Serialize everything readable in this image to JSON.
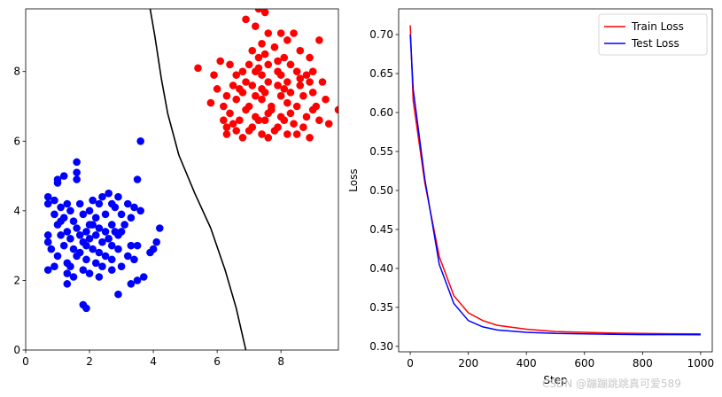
{
  "chart_data": [
    {
      "type": "scatter",
      "title": "",
      "xlabel": "",
      "ylabel": "",
      "xlim": [
        0,
        9.8
      ],
      "ylim": [
        0,
        9.8
      ],
      "xticks": [
        "0",
        "2",
        "4",
        "6",
        "8"
      ],
      "yticks": [
        "0",
        "2",
        "4",
        "6",
        "8"
      ],
      "grid": false,
      "series": [
        {
          "color": "#ff0000",
          "points": [
            [
              6.9,
              9.5
            ],
            [
              7.3,
              9.8
            ],
            [
              7.5,
              9.7
            ],
            [
              7.2,
              9.3
            ],
            [
              7.6,
              9.1
            ],
            [
              8.0,
              9.1
            ],
            [
              8.4,
              9.1
            ],
            [
              8.2,
              8.9
            ],
            [
              7.4,
              8.8
            ],
            [
              7.8,
              8.7
            ],
            [
              9.2,
              8.9
            ],
            [
              7.1,
              8.6
            ],
            [
              7.5,
              8.5
            ],
            [
              8.6,
              8.6
            ],
            [
              7.3,
              8.4
            ],
            [
              8.1,
              8.4
            ],
            [
              8.9,
              8.4
            ],
            [
              6.4,
              8.2
            ],
            [
              7.0,
              8.2
            ],
            [
              7.6,
              8.2
            ],
            [
              8.3,
              8.2
            ],
            [
              6.1,
              8.3
            ],
            [
              5.4,
              8.1
            ],
            [
              7.2,
              8.0
            ],
            [
              7.9,
              8.0
            ],
            [
              8.5,
              8.0
            ],
            [
              9.0,
              8.0
            ],
            [
              5.9,
              7.9
            ],
            [
              6.6,
              7.9
            ],
            [
              7.4,
              7.9
            ],
            [
              8.8,
              7.9
            ],
            [
              6.9,
              7.7
            ],
            [
              7.6,
              7.7
            ],
            [
              8.2,
              7.7
            ],
            [
              9.3,
              7.7
            ],
            [
              6.5,
              7.6
            ],
            [
              7.1,
              7.6
            ],
            [
              7.9,
              7.6
            ],
            [
              8.6,
              7.6
            ],
            [
              6.0,
              7.5
            ],
            [
              6.8,
              7.4
            ],
            [
              7.5,
              7.4
            ],
            [
              8.3,
              7.4
            ],
            [
              9.0,
              7.4
            ],
            [
              6.3,
              7.3
            ],
            [
              7.2,
              7.3
            ],
            [
              8.0,
              7.3
            ],
            [
              8.7,
              7.3
            ],
            [
              9.4,
              7.2
            ],
            [
              6.6,
              7.2
            ],
            [
              7.4,
              7.2
            ],
            [
              8.2,
              7.1
            ],
            [
              5.8,
              7.1
            ],
            [
              6.2,
              7.0
            ],
            [
              7.0,
              7.0
            ],
            [
              7.7,
              7.0
            ],
            [
              8.5,
              7.0
            ],
            [
              9.1,
              7.0
            ],
            [
              6.9,
              6.9
            ],
            [
              7.6,
              6.8
            ],
            [
              8.3,
              6.8
            ],
            [
              9.8,
              6.9
            ],
            [
              6.4,
              6.8
            ],
            [
              7.2,
              6.7
            ],
            [
              8.0,
              6.7
            ],
            [
              8.8,
              6.7
            ],
            [
              6.7,
              6.6
            ],
            [
              7.5,
              6.6
            ],
            [
              8.4,
              6.5
            ],
            [
              9.2,
              6.6
            ],
            [
              6.3,
              6.4
            ],
            [
              7.1,
              6.4
            ],
            [
              7.9,
              6.4
            ],
            [
              8.7,
              6.4
            ],
            [
              6.6,
              6.3
            ],
            [
              7.4,
              6.2
            ],
            [
              8.2,
              6.2
            ],
            [
              6.8,
              6.1
            ],
            [
              7.6,
              6.1
            ],
            [
              8.5,
              6.2
            ],
            [
              6.3,
              6.2
            ],
            [
              7.0,
              6.3
            ],
            [
              7.8,
              6.3
            ],
            [
              9.5,
              6.5
            ],
            [
              8.9,
              6.1
            ],
            [
              7.3,
              6.6
            ],
            [
              6.5,
              6.5
            ],
            [
              8.1,
              6.6
            ],
            [
              7.7,
              6.9
            ],
            [
              6.2,
              6.6
            ],
            [
              9.0,
              6.9
            ],
            [
              8.0,
              7.9
            ],
            [
              7.3,
              8.1
            ],
            [
              6.8,
              8.0
            ],
            [
              8.6,
              7.8
            ],
            [
              7.9,
              8.3
            ],
            [
              7.4,
              7.5
            ],
            [
              8.1,
              7.5
            ],
            [
              6.7,
              7.5
            ],
            [
              8.9,
              7.7
            ]
          ]
        },
        {
          "color": "#0000ff",
          "points": [
            [
              3.6,
              6.0
            ],
            [
              1.6,
              5.4
            ],
            [
              1.6,
              5.1
            ],
            [
              1.2,
              5.0
            ],
            [
              1.0,
              4.9
            ],
            [
              1.6,
              4.9
            ],
            [
              3.5,
              4.9
            ],
            [
              1.0,
              4.8
            ],
            [
              2.6,
              4.5
            ],
            [
              2.4,
              4.4
            ],
            [
              0.7,
              4.4
            ],
            [
              2.9,
              4.4
            ],
            [
              0.9,
              4.3
            ],
            [
              1.3,
              4.2
            ],
            [
              2.1,
              4.3
            ],
            [
              2.7,
              4.2
            ],
            [
              3.2,
              4.2
            ],
            [
              0.7,
              4.2
            ],
            [
              1.7,
              4.2
            ],
            [
              2.3,
              4.2
            ],
            [
              1.1,
              4.1
            ],
            [
              2.0,
              4.0
            ],
            [
              2.8,
              4.1
            ],
            [
              3.4,
              4.1
            ],
            [
              3.6,
              4.0
            ],
            [
              1.4,
              4.0
            ],
            [
              0.9,
              3.9
            ],
            [
              1.8,
              3.9
            ],
            [
              2.5,
              3.9
            ],
            [
              3.0,
              3.9
            ],
            [
              1.2,
              3.8
            ],
            [
              2.2,
              3.8
            ],
            [
              3.3,
              3.8
            ],
            [
              1.5,
              3.7
            ],
            [
              2.0,
              3.6
            ],
            [
              2.7,
              3.6
            ],
            [
              1.0,
              3.6
            ],
            [
              3.1,
              3.6
            ],
            [
              1.6,
              3.5
            ],
            [
              2.3,
              3.5
            ],
            [
              4.2,
              3.5
            ],
            [
              1.3,
              3.4
            ],
            [
              1.9,
              3.4
            ],
            [
              2.5,
              3.4
            ],
            [
              3.0,
              3.4
            ],
            [
              2.8,
              3.4
            ],
            [
              0.7,
              3.3
            ],
            [
              1.1,
              3.3
            ],
            [
              1.7,
              3.3
            ],
            [
              2.2,
              3.3
            ],
            [
              1.4,
              3.2
            ],
            [
              2.0,
              3.2
            ],
            [
              2.6,
              3.2
            ],
            [
              0.7,
              3.1
            ],
            [
              1.8,
              3.1
            ],
            [
              2.4,
              3.1
            ],
            [
              4.1,
              3.1
            ],
            [
              1.2,
              3.0
            ],
            [
              1.9,
              3.0
            ],
            [
              2.7,
              3.0
            ],
            [
              3.3,
              3.0
            ],
            [
              3.5,
              3.0
            ],
            [
              0.8,
              2.9
            ],
            [
              1.5,
              2.9
            ],
            [
              2.1,
              2.9
            ],
            [
              2.9,
              2.9
            ],
            [
              1.7,
              2.8
            ],
            [
              2.3,
              2.8
            ],
            [
              3.9,
              2.8
            ],
            [
              1.0,
              2.7
            ],
            [
              1.6,
              2.7
            ],
            [
              2.5,
              2.7
            ],
            [
              3.2,
              2.7
            ],
            [
              1.9,
              2.6
            ],
            [
              2.7,
              2.6
            ],
            [
              3.4,
              2.6
            ],
            [
              1.3,
              2.5
            ],
            [
              2.2,
              2.5
            ],
            [
              1.4,
              2.4
            ],
            [
              2.4,
              2.4
            ],
            [
              0.9,
              2.4
            ],
            [
              3.0,
              2.4
            ],
            [
              1.8,
              2.3
            ],
            [
              2.7,
              2.3
            ],
            [
              0.7,
              2.3
            ],
            [
              1.3,
              2.2
            ],
            [
              2.0,
              2.2
            ],
            [
              3.7,
              2.1
            ],
            [
              1.5,
              2.1
            ],
            [
              2.3,
              2.1
            ],
            [
              3.5,
              2.0
            ],
            [
              1.3,
              1.9
            ],
            [
              3.3,
              1.9
            ],
            [
              2.9,
              1.6
            ],
            [
              1.8,
              1.3
            ],
            [
              1.9,
              1.2
            ],
            [
              4.0,
              2.9
            ],
            [
              2.1,
              3.6
            ],
            [
              1.1,
              3.7
            ],
            [
              2.9,
              3.3
            ]
          ]
        }
      ],
      "decision_boundary": [
        [
          3.9,
          9.8
        ],
        [
          4.05,
          9.0
        ],
        [
          4.25,
          7.8
        ],
        [
          4.45,
          6.8
        ],
        [
          4.8,
          5.6
        ],
        [
          5.3,
          4.5
        ],
        [
          5.8,
          3.5
        ],
        [
          6.25,
          2.3
        ],
        [
          6.6,
          1.2
        ],
        [
          6.9,
          0.0
        ]
      ]
    },
    {
      "type": "line",
      "title": "",
      "xlabel": "Step",
      "ylabel": "Loss",
      "xlim": [
        -40,
        1040
      ],
      "ylim": [
        0.293,
        0.733
      ],
      "xticks": [
        "0",
        "200",
        "400",
        "600",
        "800",
        "1000"
      ],
      "yticks": [
        "0.30",
        "0.35",
        "0.40",
        "0.45",
        "0.50",
        "0.55",
        "0.60",
        "0.65",
        "0.70"
      ],
      "grid": false,
      "legend": "top-right",
      "series": [
        {
          "name": "Train Loss",
          "color": "#ff0000",
          "x": [
            0,
            10,
            50,
            100,
            150,
            200,
            250,
            300,
            400,
            500,
            600,
            700,
            800,
            900,
            1000
          ],
          "values": [
            0.712,
            0.615,
            0.51,
            0.415,
            0.365,
            0.343,
            0.333,
            0.327,
            0.322,
            0.319,
            0.318,
            0.317,
            0.3165,
            0.3162,
            0.316
          ]
        },
        {
          "name": "Test Loss",
          "color": "#0000ff",
          "x": [
            0,
            10,
            50,
            100,
            150,
            200,
            250,
            300,
            400,
            500,
            600,
            700,
            800,
            900,
            1000
          ],
          "values": [
            0.7,
            0.63,
            0.515,
            0.405,
            0.355,
            0.333,
            0.325,
            0.321,
            0.318,
            0.3165,
            0.316,
            0.3155,
            0.315,
            0.315,
            0.3148
          ]
        }
      ]
    }
  ],
  "watermark": "CSDN @蹦蹦跳跳真可爱589"
}
